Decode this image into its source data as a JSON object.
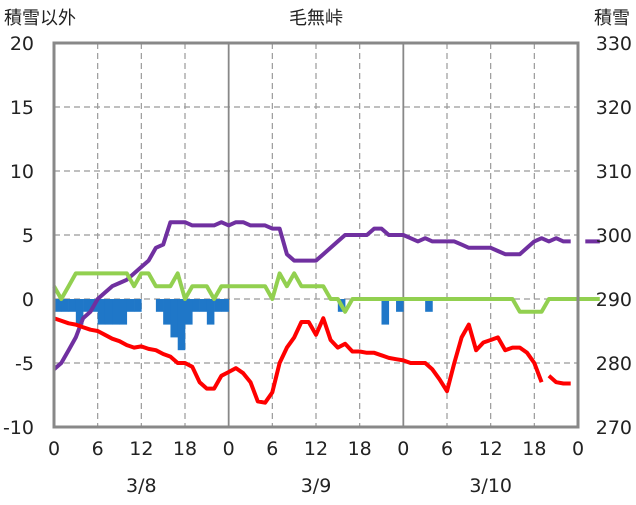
{
  "chart_data": {
    "type": "line",
    "title": "毛無峠",
    "left_axis_label": "積雪以外",
    "right_axis_label": "積雪",
    "left_ylim": [
      -10,
      20
    ],
    "left_yticks": [
      "20",
      "15",
      "10",
      "5",
      "0",
      "-5",
      "-10"
    ],
    "right_ylim": [
      270,
      330
    ],
    "right_yticks": [
      "330",
      "320",
      "310",
      "300",
      "290",
      "280",
      "270"
    ],
    "x_hours_range": [
      0,
      72
    ],
    "x_tick_labels": [
      "0",
      "6",
      "12",
      "18",
      "0",
      "6",
      "12",
      "18",
      "0",
      "6",
      "12",
      "18",
      "0"
    ],
    "date_labels": [
      {
        "label": "3/8",
        "hour": 12
      },
      {
        "label": "3/9",
        "hour": 36
      },
      {
        "label": "3/10",
        "hour": 60
      }
    ],
    "grid": true,
    "legend": "none",
    "series": [
      {
        "axis": "right",
        "color": "#7030a0",
        "points": [
          [
            0,
            279
          ],
          [
            1,
            280
          ],
          [
            2,
            282
          ],
          [
            3,
            284
          ],
          [
            4,
            287
          ],
          [
            5,
            288
          ],
          [
            6,
            290
          ],
          [
            7,
            291
          ],
          [
            8,
            292
          ],
          [
            9,
            292.5
          ],
          [
            10,
            293
          ],
          [
            11,
            294
          ],
          [
            12,
            295
          ],
          [
            13,
            296
          ],
          [
            14,
            298
          ],
          [
            15,
            298.5
          ],
          [
            16,
            302
          ],
          [
            17,
            302
          ],
          [
            18,
            302
          ],
          [
            19,
            301.5
          ],
          [
            20,
            301.5
          ],
          [
            21,
            301.5
          ],
          [
            22,
            301.5
          ],
          [
            23,
            302
          ],
          [
            24,
            301.5
          ],
          [
            25,
            302
          ],
          [
            26,
            302
          ],
          [
            27,
            301.5
          ],
          [
            28,
            301.5
          ],
          [
            29,
            301.5
          ],
          [
            30,
            301
          ],
          [
            31,
            301
          ],
          [
            32,
            297
          ],
          [
            33,
            296
          ],
          [
            34,
            296
          ],
          [
            35,
            296
          ],
          [
            36,
            296
          ],
          [
            37,
            297
          ],
          [
            38,
            298
          ],
          [
            39,
            299
          ],
          [
            40,
            300
          ],
          [
            41,
            300
          ],
          [
            42,
            300
          ],
          [
            43,
            300
          ],
          [
            44,
            301
          ],
          [
            45,
            301
          ],
          [
            46,
            300
          ],
          [
            47,
            300
          ],
          [
            48,
            300
          ],
          [
            49,
            299.5
          ],
          [
            50,
            299
          ],
          [
            51,
            299.5
          ],
          [
            52,
            299
          ],
          [
            53,
            299
          ],
          [
            54,
            299
          ],
          [
            55,
            299
          ],
          [
            56,
            298.5
          ],
          [
            57,
            298
          ],
          [
            58,
            298
          ],
          [
            59,
            298
          ],
          [
            60,
            298
          ],
          [
            61,
            297.5
          ],
          [
            62,
            297
          ],
          [
            63,
            297
          ],
          [
            64,
            297
          ],
          [
            65,
            298
          ],
          [
            66,
            299
          ],
          [
            67,
            299.5
          ],
          [
            68,
            299
          ],
          [
            69,
            299.5
          ],
          [
            70,
            299
          ],
          [
            71,
            299
          ]
        ]
      },
      {
        "axis": "right",
        "color": "#7030a0",
        "points": [
          [
            73,
            299
          ],
          [
            74,
            299
          ],
          [
            75,
            299
          ]
        ]
      },
      {
        "axis": "left",
        "color": "#92d050",
        "points": [
          [
            0,
            1
          ],
          [
            1,
            0
          ],
          [
            2,
            1
          ],
          [
            3,
            2
          ],
          [
            4,
            2
          ],
          [
            5,
            2
          ],
          [
            6,
            2
          ],
          [
            7,
            2
          ],
          [
            8,
            2
          ],
          [
            9,
            2
          ],
          [
            10,
            2
          ],
          [
            11,
            1
          ],
          [
            12,
            2
          ],
          [
            13,
            2
          ],
          [
            14,
            1
          ],
          [
            15,
            1
          ],
          [
            16,
            1
          ],
          [
            17,
            2
          ],
          [
            18,
            0
          ],
          [
            19,
            1
          ],
          [
            20,
            1
          ],
          [
            21,
            1
          ],
          [
            22,
            0
          ],
          [
            23,
            1
          ],
          [
            24,
            1
          ],
          [
            25,
            1
          ],
          [
            26,
            1
          ],
          [
            27,
            1
          ],
          [
            28,
            1
          ],
          [
            29,
            1
          ],
          [
            30,
            0
          ],
          [
            31,
            2
          ],
          [
            32,
            1
          ],
          [
            33,
            2
          ],
          [
            34,
            1
          ],
          [
            35,
            1
          ],
          [
            36,
            1
          ],
          [
            37,
            1
          ],
          [
            38,
            0
          ],
          [
            39,
            0
          ],
          [
            40,
            -1
          ],
          [
            41,
            0
          ],
          [
            42,
            0
          ],
          [
            43,
            0
          ],
          [
            44,
            0
          ],
          [
            45,
            0
          ],
          [
            46,
            0
          ],
          [
            47,
            0
          ],
          [
            48,
            0
          ],
          [
            49,
            0
          ],
          [
            50,
            0
          ],
          [
            51,
            0
          ],
          [
            52,
            0
          ],
          [
            53,
            0
          ],
          [
            54,
            0
          ],
          [
            55,
            0
          ],
          [
            56,
            0
          ],
          [
            57,
            0
          ],
          [
            58,
            0
          ],
          [
            59,
            0
          ],
          [
            60,
            0
          ],
          [
            61,
            0
          ],
          [
            62,
            0
          ],
          [
            63,
            0
          ],
          [
            64,
            -1
          ],
          [
            65,
            -1
          ],
          [
            66,
            -1
          ],
          [
            67,
            -1
          ],
          [
            68,
            0
          ],
          [
            69,
            0
          ],
          [
            70,
            0
          ],
          [
            71,
            0
          ],
          [
            72,
            0
          ],
          [
            73,
            0
          ],
          [
            74,
            0
          ],
          [
            75,
            0
          ]
        ]
      },
      {
        "axis": "left",
        "color": "#ff0000",
        "points": [
          [
            0,
            -1.5
          ],
          [
            1,
            -1.7
          ],
          [
            2,
            -1.9
          ],
          [
            3,
            -2.0
          ],
          [
            4,
            -2.2
          ],
          [
            5,
            -2.4
          ],
          [
            6,
            -2.5
          ],
          [
            7,
            -2.8
          ],
          [
            8,
            -3.1
          ],
          [
            9,
            -3.3
          ],
          [
            10,
            -3.6
          ],
          [
            11,
            -3.8
          ],
          [
            12,
            -3.7
          ],
          [
            13,
            -3.9
          ],
          [
            14,
            -4.0
          ],
          [
            15,
            -4.3
          ],
          [
            16,
            -4.5
          ],
          [
            17,
            -5.0
          ],
          [
            18,
            -5.0
          ],
          [
            19,
            -5.3
          ],
          [
            20,
            -6.5
          ],
          [
            21,
            -7.0
          ],
          [
            22,
            -7.0
          ],
          [
            23,
            -6.0
          ],
          [
            24,
            -5.7
          ],
          [
            25,
            -5.4
          ],
          [
            26,
            -5.8
          ],
          [
            27,
            -6.5
          ],
          [
            28,
            -8.0
          ],
          [
            29,
            -8.1
          ],
          [
            30,
            -7.3
          ],
          [
            31,
            -5.0
          ],
          [
            32,
            -3.8
          ],
          [
            33,
            -3.0
          ],
          [
            34,
            -1.8
          ],
          [
            35,
            -1.8
          ],
          [
            36,
            -2.8
          ],
          [
            37,
            -1.5
          ],
          [
            38,
            -3.2
          ],
          [
            39,
            -3.8
          ],
          [
            40,
            -3.5
          ],
          [
            41,
            -4.1
          ],
          [
            42,
            -4.1
          ],
          [
            43,
            -4.2
          ],
          [
            44,
            -4.2
          ],
          [
            45,
            -4.4
          ],
          [
            46,
            -4.6
          ],
          [
            47,
            -4.7
          ],
          [
            48,
            -4.8
          ],
          [
            49,
            -5.0
          ],
          [
            50,
            -5.0
          ],
          [
            51,
            -5.0
          ],
          [
            52,
            -5.5
          ],
          [
            53,
            -6.3
          ],
          [
            54,
            -7.2
          ],
          [
            55,
            -5.0
          ],
          [
            56,
            -3.0
          ],
          [
            57,
            -2.0
          ],
          [
            58,
            -4.0
          ],
          [
            59,
            -3.4
          ],
          [
            60,
            -3.2
          ],
          [
            61,
            -3.0
          ],
          [
            62,
            -4.0
          ],
          [
            63,
            -3.8
          ],
          [
            64,
            -3.8
          ],
          [
            65,
            -4.2
          ],
          [
            66,
            -5.0
          ],
          [
            67,
            -6.5
          ]
        ]
      },
      {
        "axis": "left",
        "color": "#ff0000",
        "points": [
          [
            68,
            -6.0
          ],
          [
            69,
            -6.5
          ],
          [
            70,
            -6.6
          ],
          [
            71,
            -6.6
          ]
        ]
      }
    ],
    "bars": {
      "axis": "left",
      "color": "#1f77c8",
      "points": [
        [
          0,
          -1
        ],
        [
          1,
          -1
        ],
        [
          2,
          -1
        ],
        [
          3,
          -2
        ],
        [
          4,
          -1
        ],
        [
          5,
          -1
        ],
        [
          6,
          -2
        ],
        [
          7,
          -2
        ],
        [
          8,
          -2
        ],
        [
          9,
          -2
        ],
        [
          10,
          -1
        ],
        [
          11,
          -1
        ],
        [
          14,
          -1
        ],
        [
          15,
          -2
        ],
        [
          16,
          -3
        ],
        [
          17,
          -4
        ],
        [
          18,
          -2
        ],
        [
          19,
          -1
        ],
        [
          20,
          -1
        ],
        [
          21,
          -2
        ],
        [
          22,
          -1
        ],
        [
          23,
          -1
        ],
        [
          39,
          -1
        ],
        [
          45,
          -2
        ],
        [
          47,
          -1
        ],
        [
          51,
          -1
        ]
      ]
    }
  }
}
